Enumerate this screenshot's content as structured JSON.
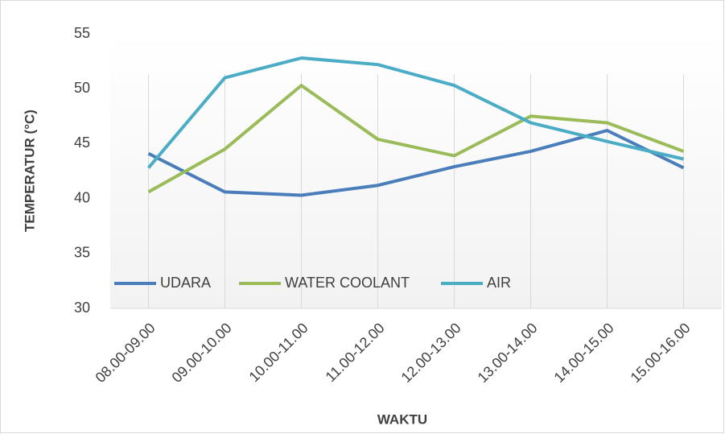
{
  "chart_data": {
    "type": "line",
    "x_label": "WAKTU",
    "y_label": "TEMPERATUR (°C)",
    "categories": [
      "08.00-09.00",
      "09.00-10.00",
      "10.00-11.00",
      "11.00-12.00",
      "12.00-13.00",
      "13.00-14.00",
      "14.00-15.00",
      "15.00-16.00"
    ],
    "series": [
      {
        "name": "UDARA",
        "color": "#4a7ebb",
        "values": [
          44.1,
          40.6,
          40.3,
          41.2,
          42.9,
          44.3,
          46.2,
          42.8
        ]
      },
      {
        "name": "WATER COOLANT",
        "color": "#9bbb59",
        "values": [
          40.6,
          44.5,
          50.3,
          45.4,
          43.9,
          47.5,
          46.9,
          44.3
        ]
      },
      {
        "name": "AIR",
        "color": "#4bacc6",
        "values": [
          42.8,
          51.0,
          52.8,
          52.2,
          50.3,
          46.9,
          45.2,
          43.6
        ]
      }
    ],
    "ylim": [
      30,
      55
    ],
    "yticks": [
      30,
      35,
      40,
      45,
      50,
      55
    ],
    "grid": "vertical",
    "legend": "bottom-left"
  }
}
